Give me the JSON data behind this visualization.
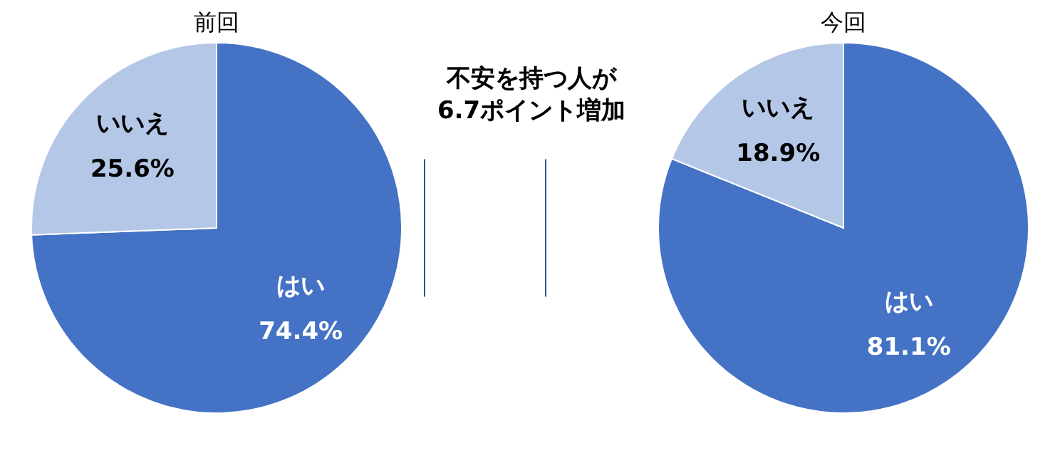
{
  "chart_data": [
    {
      "type": "pie",
      "title": "前回",
      "categories": [
        "はい",
        "いいえ"
      ],
      "values": [
        74.4,
        25.6
      ],
      "colors": [
        "#4472c4",
        "#b4c7e7"
      ],
      "value_labels": [
        "74.4%",
        "25.6%"
      ]
    },
    {
      "type": "other",
      "annotations": [
        "不安を持つ人が",
        "6.7ポイント増加"
      ]
    },
    {
      "type": "pie",
      "title": "今回",
      "categories": [
        "はい",
        "いいえ"
      ],
      "values": [
        81.1,
        18.9
      ],
      "colors": [
        "#4472c4",
        "#b4c7e7"
      ],
      "value_labels": [
        "81.1%",
        "18.9%"
      ]
    }
  ]
}
